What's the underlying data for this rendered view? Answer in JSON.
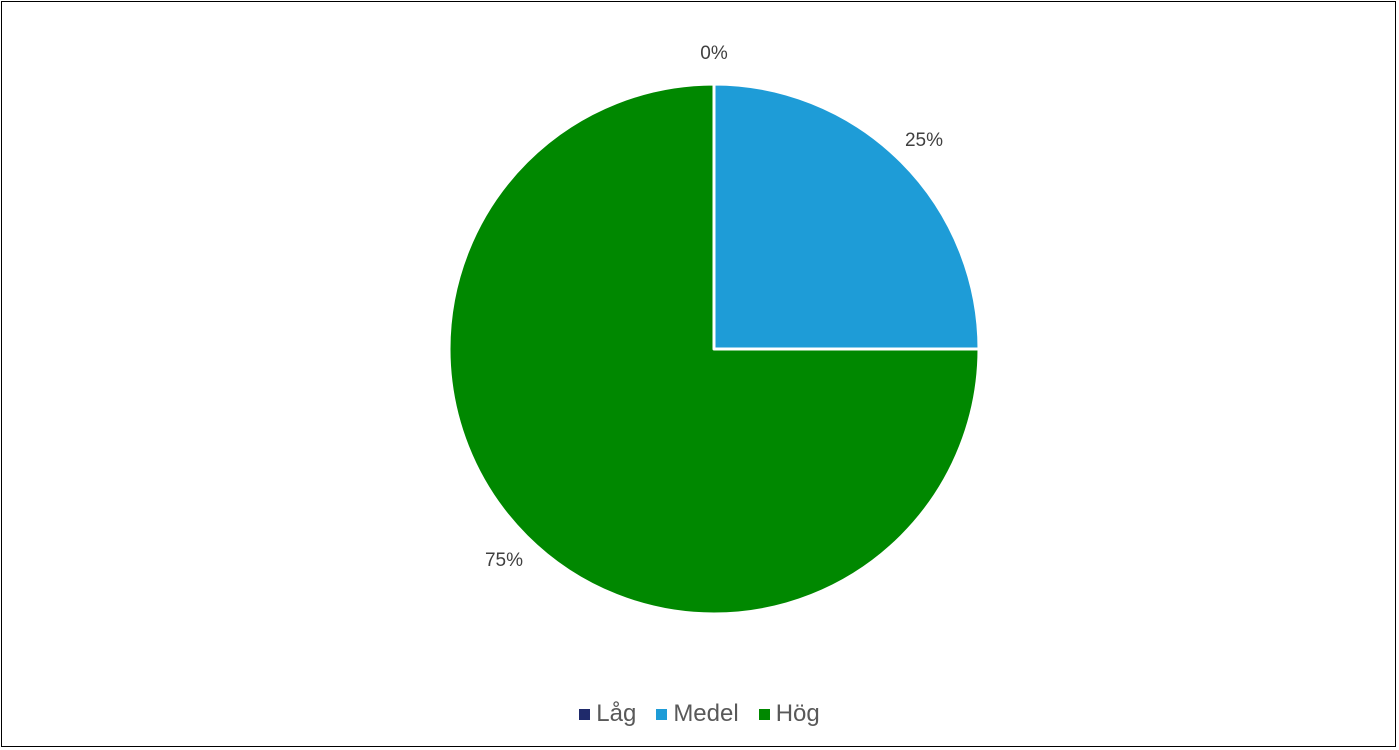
{
  "chart_data": {
    "type": "pie",
    "categories": [
      "Låg",
      "Medel",
      "Hög"
    ],
    "values": [
      0,
      25,
      75
    ],
    "data_labels": [
      "0%",
      "25%",
      "75%"
    ],
    "colors": [
      "#1f2a6b",
      "#1e9cd7",
      "#008800"
    ],
    "legend_position": "bottom",
    "start_angle": "top, clockwise"
  },
  "legend": {
    "items": [
      {
        "label": "Låg",
        "color": "#1f2a6b"
      },
      {
        "label": "Medel",
        "color": "#1e9cd7"
      },
      {
        "label": "Hög",
        "color": "#008800"
      }
    ]
  }
}
